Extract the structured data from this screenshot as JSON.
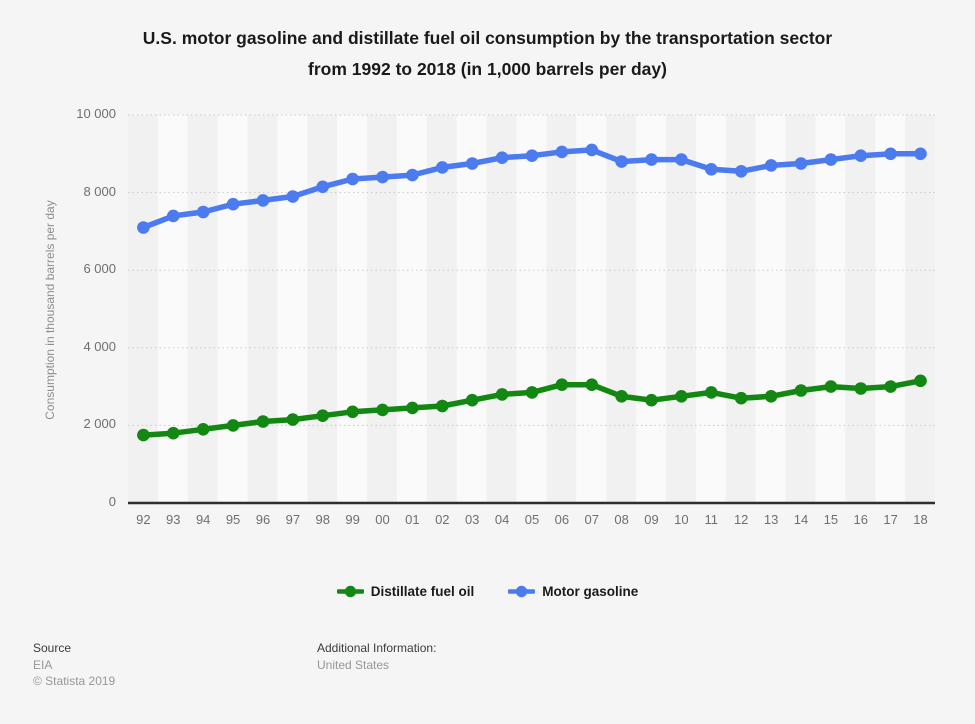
{
  "header": {
    "title_line1": "U.S. motor gasoline and distillate fuel oil consumption by the transportation sector",
    "title_line2": "from 1992 to 2018 (in 1,000 barrels per day)"
  },
  "chart_data": {
    "type": "line",
    "title": "U.S. motor gasoline and distillate fuel oil consumption by the transportation sector from 1992 to 2018 (in 1,000 barrels per day)",
    "xlabel": "",
    "ylabel": "Consumption in thousand barrels per day",
    "ylim": [
      0,
      10000
    ],
    "yticks": [
      0,
      2000,
      4000,
      6000,
      8000,
      10000
    ],
    "ytick_labels": [
      "0",
      "2 000",
      "4 000",
      "6 000",
      "8 000",
      "10 000"
    ],
    "grid": "horizontal-dotted",
    "plot_band_colors": [
      "#f1f1f1",
      "#fafafa"
    ],
    "gridline_color": "#c9c9c9",
    "axis_line_color": "#2f2f2f",
    "legend_position": "bottom",
    "categories": [
      "92",
      "93",
      "94",
      "95",
      "96",
      "97",
      "98",
      "99",
      "00",
      "01",
      "02",
      "03",
      "04",
      "05",
      "06",
      "07",
      "08",
      "09",
      "10",
      "11",
      "12",
      "13",
      "14",
      "15",
      "16",
      "17",
      "18"
    ],
    "series": [
      {
        "name": "Distillate fuel oil",
        "color": "#128712",
        "values": [
          1750,
          1800,
          1900,
          2000,
          2100,
          2150,
          2250,
          2350,
          2400,
          2450,
          2500,
          2650,
          2800,
          2850,
          3050,
          3050,
          2750,
          2650,
          2750,
          2850,
          2700,
          2750,
          2900,
          3000,
          2950,
          3000,
          3150
        ]
      },
      {
        "name": "Motor gasoline",
        "color": "#4b7bee",
        "values": [
          7100,
          7400,
          7500,
          7700,
          7800,
          7900,
          8150,
          8350,
          8400,
          8450,
          8650,
          8750,
          8900,
          8950,
          9050,
          9100,
          8800,
          8850,
          8850,
          8600,
          8550,
          8700,
          8750,
          8850,
          8950,
          9000,
          9000
        ]
      }
    ]
  },
  "footer": {
    "source_label": "Source",
    "source_value": "EIA",
    "copyright": "© Statista 2019",
    "additional_label": "Additional Information:",
    "additional_value": "United States"
  }
}
